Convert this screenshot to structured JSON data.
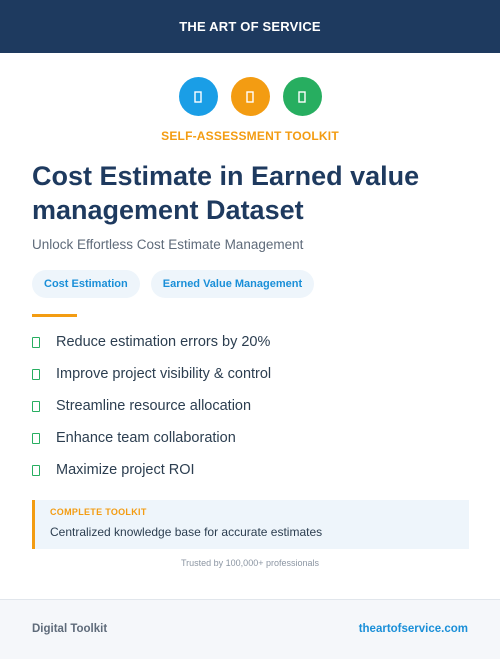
{
  "header": {
    "brand": "THE ART OF SERVICE"
  },
  "icons": [
    {
      "name": "document-icon",
      "color": "#1a9ee6"
    },
    {
      "name": "document-icon",
      "color": "#f39c12"
    },
    {
      "name": "document-icon",
      "color": "#27ae60"
    }
  ],
  "hero": {
    "kicker": "SELF-ASSESSMENT TOOLKIT",
    "title": "Cost Estimate in Earned value management Dataset",
    "subtitle": "Unlock Effortless Cost Estimate Management"
  },
  "tags": [
    "Cost Estimation",
    "Earned Value Management"
  ],
  "benefits": [
    "Reduce estimation errors by 20%",
    "Improve project visibility & control",
    "Streamline resource allocation",
    "Enhance team collaboration",
    "Maximize project ROI"
  ],
  "callout": {
    "label": "COMPLETE TOOLKIT",
    "text": "Centralized knowledge base for accurate estimates"
  },
  "trust": "Trusted by 100,000+ professionals",
  "footer": {
    "left": "Digital Toolkit",
    "right": "theartofservice.com"
  },
  "colors": {
    "navy": "#1e3a5f",
    "accent": "#f39c12",
    "blue": "#1a8fd8",
    "green": "#27ae60"
  }
}
